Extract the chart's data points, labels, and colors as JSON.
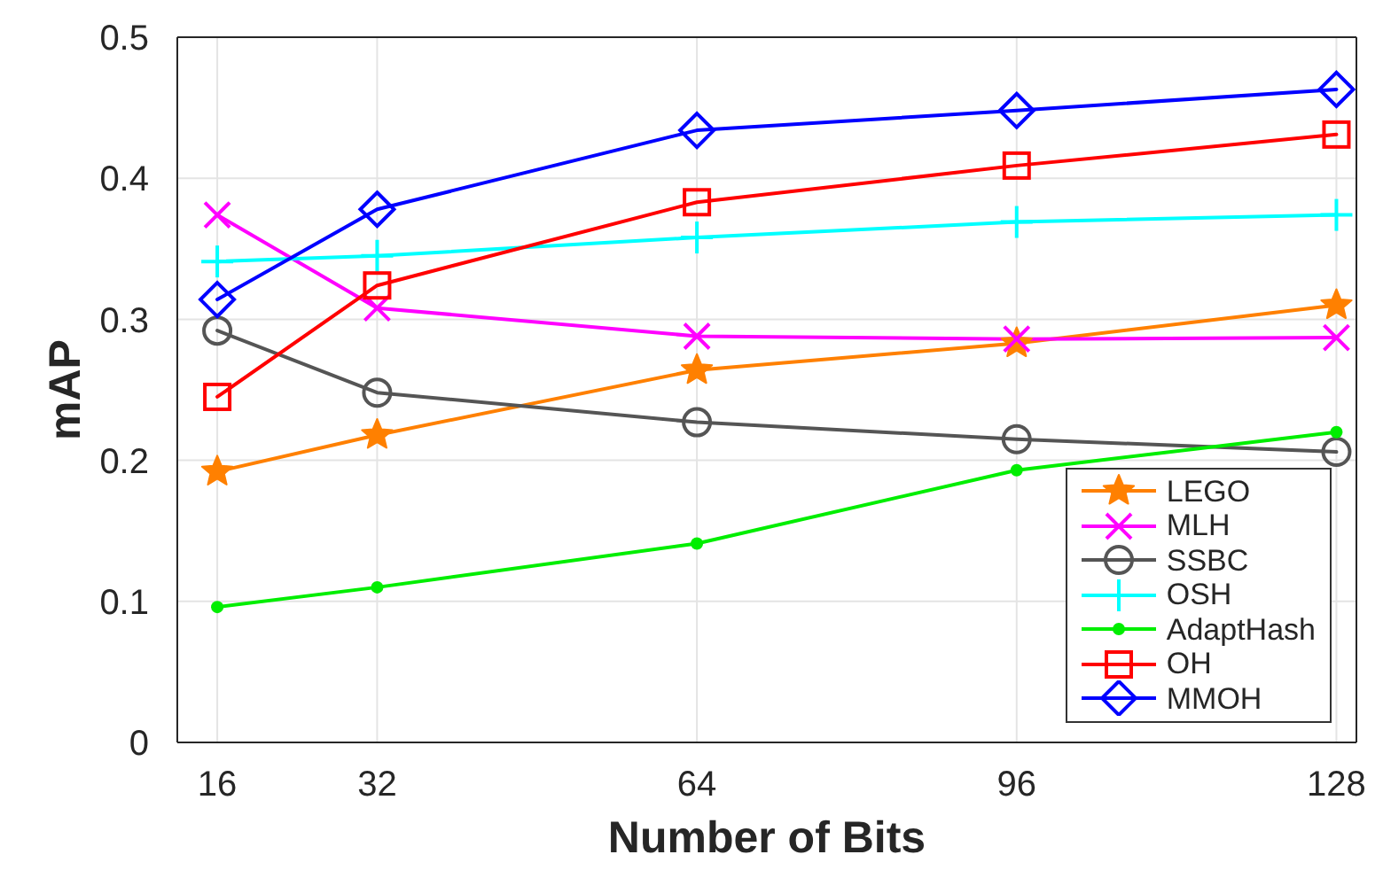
{
  "chart_data": {
    "type": "line",
    "xlabel": "Number of Bits",
    "ylabel": "mAP",
    "x": [
      16,
      32,
      64,
      96,
      128
    ],
    "xlim": [
      12,
      130
    ],
    "xticks": [
      16,
      32,
      64,
      96,
      128
    ],
    "ylim": [
      0,
      0.5
    ],
    "yticks": [
      0,
      0.1,
      0.2,
      0.3,
      0.4,
      0.5
    ],
    "grid": true,
    "legend": "bottom right",
    "line_style": "solid",
    "series": [
      {
        "name": "LEGO",
        "color": "#ff8000",
        "marker": "star",
        "values": [
          0.192,
          0.218,
          0.264,
          0.283,
          0.31
        ]
      },
      {
        "name": "MLH",
        "color": "#ff00ff",
        "marker": "cross",
        "values": [
          0.374,
          0.308,
          0.288,
          0.286,
          0.287
        ]
      },
      {
        "name": "SSBC",
        "color": "#555555",
        "marker": "circle",
        "values": [
          0.292,
          0.248,
          0.227,
          0.215,
          0.206
        ]
      },
      {
        "name": "OSH",
        "color": "#00ffff",
        "marker": "plus",
        "values": [
          0.341,
          0.345,
          0.358,
          0.369,
          0.374
        ]
      },
      {
        "name": "AdaptHash",
        "color": "#00ee00",
        "marker": "dot",
        "values": [
          0.096,
          0.11,
          0.141,
          0.193,
          0.22
        ]
      },
      {
        "name": "OH",
        "color": "#ff0000",
        "marker": "square",
        "values": [
          0.245,
          0.324,
          0.383,
          0.409,
          0.431
        ]
      },
      {
        "name": "MMOH",
        "color": "#0000ff",
        "marker": "diamond",
        "values": [
          0.314,
          0.378,
          0.434,
          0.448,
          0.463
        ]
      }
    ]
  }
}
